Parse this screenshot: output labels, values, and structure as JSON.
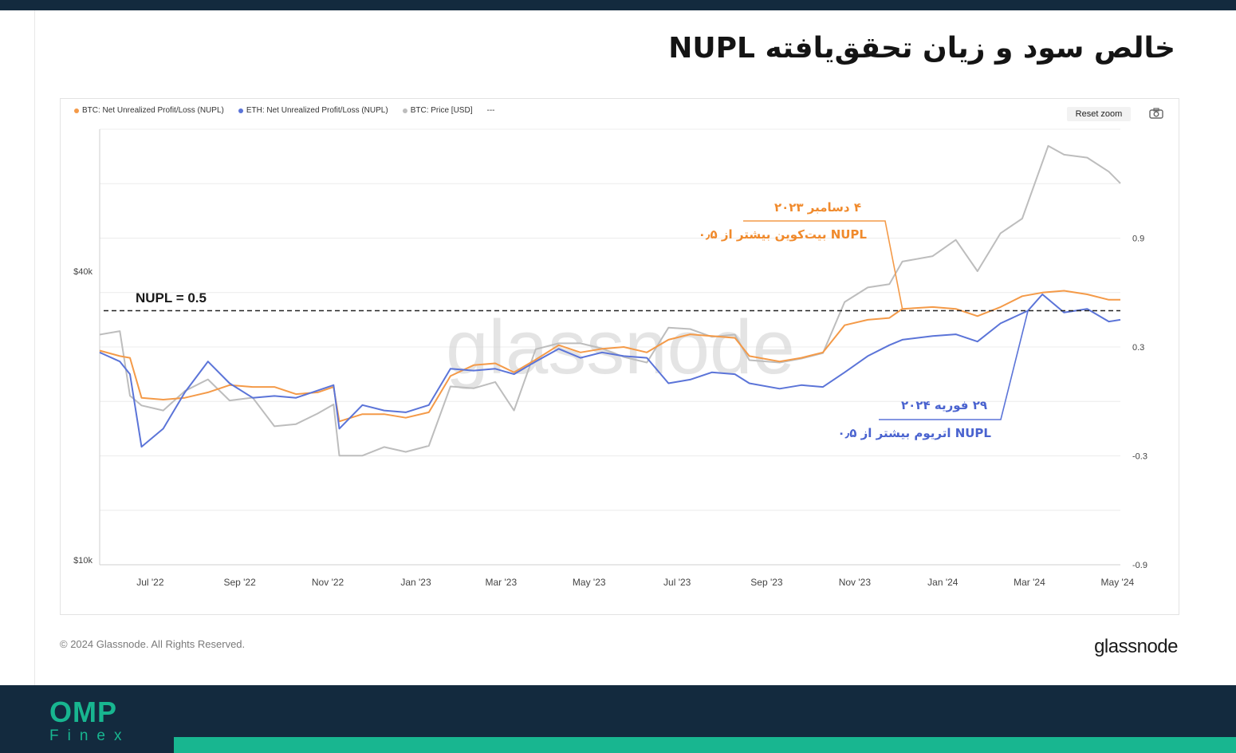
{
  "title": "خالص سود و زیان تحقق‌یافته NUPL",
  "legend": [
    {
      "label": "BTC: Net Unrealized Profit/Loss (NUPL)",
      "color": "#f49a48"
    },
    {
      "label": "ETH: Net Unrealized Profit/Loss (NUPL)",
      "color": "#5b74d8"
    },
    {
      "label": "BTC: Price [USD]",
      "color": "#bdbdbd"
    },
    {
      "label": "---",
      "color": "#888888"
    }
  ],
  "toolbar": {
    "reset_zoom": "Reset zoom",
    "icon": "camera-icon"
  },
  "annotations": {
    "nupl_line": "NUPL = 0.5",
    "btc_date": "۴ دسامبر ۲۰۲۳",
    "btc_text": "NUPL بیت‌کوین بیشتر از ۰٫۵",
    "eth_date": "۲۹ فوریه ۲۰۲۴",
    "eth_text": "NUPL اتریوم بیشتر از ۰٫۵"
  },
  "footer": {
    "copyright": "© 2024 Glassnode. All Rights Reserved.",
    "brand": "glassnode",
    "logo_main": "OMP",
    "logo_sub": "Finex",
    "watermark": "glassnode"
  },
  "colors": {
    "btc": "#f49a48",
    "eth": "#5b74d8",
    "price": "#bdbdbd",
    "dark": "#132a3e",
    "accent": "#18b690"
  },
  "chart_data": {
    "type": "line",
    "x_labels": [
      "Jul '22",
      "Sep '22",
      "Nov '22",
      "Jan '23",
      "Mar '23",
      "May '23",
      "Jul '23",
      "Sep '23",
      "Nov '23",
      "Jan '24",
      "Mar '24",
      "May '24"
    ],
    "x_range": [
      "2022-05-27",
      "2024-05-03"
    ],
    "y_left": {
      "ticks": [
        "$40k",
        "$10k"
      ],
      "tick_values": [
        40000,
        10000
      ],
      "scale": "log"
    },
    "y_right": {
      "ticks": [
        "0.9",
        "0.3",
        "-0.3",
        "-0.9"
      ],
      "tick_values": [
        0.9,
        0.3,
        -0.3,
        -0.9
      ],
      "range": [
        -0.9,
        1.5
      ]
    },
    "reference_line": {
      "label": "NUPL = 0.5",
      "value": 0.5,
      "style": "dashed"
    },
    "series": [
      {
        "name": "BTC: Net Unrealized Profit/Loss (NUPL)",
        "axis": "right",
        "dates": [
          "2022-05-27",
          "2022-06-10",
          "2022-06-17",
          "2022-06-25",
          "2022-07-10",
          "2022-07-25",
          "2022-08-10",
          "2022-08-25",
          "2022-09-10",
          "2022-09-25",
          "2022-10-10",
          "2022-10-25",
          "2022-11-05",
          "2022-11-09",
          "2022-11-25",
          "2022-12-10",
          "2022-12-25",
          "2023-01-10",
          "2023-01-25",
          "2023-02-10",
          "2023-02-25",
          "2023-03-10",
          "2023-03-25",
          "2023-04-10",
          "2023-04-25",
          "2023-05-10",
          "2023-05-25",
          "2023-06-10",
          "2023-06-25",
          "2023-07-10",
          "2023-07-25",
          "2023-08-10",
          "2023-08-20",
          "2023-09-10",
          "2023-09-25",
          "2023-10-10",
          "2023-10-25",
          "2023-11-10",
          "2023-11-25",
          "2023-12-04",
          "2023-12-25",
          "2024-01-10",
          "2024-01-25",
          "2024-02-10",
          "2024-02-25",
          "2024-03-10",
          "2024-03-25",
          "2024-04-10",
          "2024-04-25",
          "2024-05-03"
        ],
        "values": [
          0.28,
          0.25,
          0.24,
          0.02,
          0.01,
          0.02,
          0.05,
          0.09,
          0.08,
          0.08,
          0.04,
          0.05,
          0.08,
          -0.11,
          -0.07,
          -0.07,
          -0.09,
          -0.06,
          0.14,
          0.2,
          0.21,
          0.16,
          0.23,
          0.31,
          0.27,
          0.29,
          0.3,
          0.27,
          0.34,
          0.37,
          0.36,
          0.35,
          0.25,
          0.22,
          0.24,
          0.27,
          0.42,
          0.45,
          0.46,
          0.51,
          0.52,
          0.51,
          0.47,
          0.52,
          0.58,
          0.6,
          0.61,
          0.59,
          0.56,
          0.56
        ]
      },
      {
        "name": "ETH: Net Unrealized Profit/Loss (NUPL)",
        "axis": "right",
        "dates": [
          "2022-05-27",
          "2022-06-10",
          "2022-06-17",
          "2022-06-25",
          "2022-07-10",
          "2022-07-25",
          "2022-08-10",
          "2022-08-25",
          "2022-09-10",
          "2022-09-25",
          "2022-10-10",
          "2022-10-25",
          "2022-11-05",
          "2022-11-09",
          "2022-11-25",
          "2022-12-10",
          "2022-12-25",
          "2023-01-10",
          "2023-01-25",
          "2023-02-10",
          "2023-02-25",
          "2023-03-10",
          "2023-03-25",
          "2023-04-10",
          "2023-04-25",
          "2023-05-10",
          "2023-05-25",
          "2023-06-10",
          "2023-06-25",
          "2023-07-10",
          "2023-07-25",
          "2023-08-10",
          "2023-08-20",
          "2023-09-10",
          "2023-09-25",
          "2023-10-10",
          "2023-10-25",
          "2023-11-10",
          "2023-11-25",
          "2023-12-04",
          "2023-12-25",
          "2024-01-10",
          "2024-01-25",
          "2024-02-10",
          "2024-02-29",
          "2024-03-10",
          "2024-03-25",
          "2024-04-10",
          "2024-04-25",
          "2024-05-03"
        ],
        "values": [
          0.27,
          0.22,
          0.15,
          -0.25,
          -0.15,
          0.05,
          0.22,
          0.1,
          0.02,
          0.03,
          0.02,
          0.06,
          0.09,
          -0.15,
          -0.02,
          -0.05,
          -0.06,
          -0.02,
          0.18,
          0.17,
          0.18,
          0.15,
          0.22,
          0.29,
          0.24,
          0.27,
          0.25,
          0.24,
          0.1,
          0.12,
          0.16,
          0.15,
          0.1,
          0.07,
          0.09,
          0.08,
          0.16,
          0.25,
          0.31,
          0.34,
          0.36,
          0.37,
          0.33,
          0.43,
          0.5,
          0.59,
          0.49,
          0.51,
          0.44,
          0.45
        ]
      },
      {
        "name": "BTC: Price [USD]",
        "axis": "left",
        "dates": [
          "2022-05-27",
          "2022-06-10",
          "2022-06-17",
          "2022-06-25",
          "2022-07-10",
          "2022-07-25",
          "2022-08-10",
          "2022-08-25",
          "2022-09-10",
          "2022-09-25",
          "2022-10-10",
          "2022-10-25",
          "2022-11-05",
          "2022-11-09",
          "2022-11-25",
          "2022-12-10",
          "2022-12-25",
          "2023-01-10",
          "2023-01-25",
          "2023-02-10",
          "2023-02-25",
          "2023-03-10",
          "2023-03-25",
          "2023-04-10",
          "2023-04-25",
          "2023-05-10",
          "2023-05-25",
          "2023-06-10",
          "2023-06-25",
          "2023-07-10",
          "2023-07-25",
          "2023-08-10",
          "2023-08-20",
          "2023-09-10",
          "2023-09-25",
          "2023-10-10",
          "2023-10-25",
          "2023-11-10",
          "2023-11-25",
          "2023-12-04",
          "2023-12-25",
          "2024-01-10",
          "2024-01-25",
          "2024-02-10",
          "2024-02-25",
          "2024-03-14",
          "2024-03-25",
          "2024-04-10",
          "2024-04-25",
          "2024-05-03"
        ],
        "values": [
          29500,
          30000,
          22000,
          21000,
          20500,
          22500,
          23800,
          21500,
          21800,
          19000,
          19200,
          20200,
          21100,
          16500,
          16500,
          17200,
          16800,
          17300,
          23000,
          22800,
          23500,
          20500,
          27500,
          28300,
          28300,
          27600,
          26500,
          25800,
          30500,
          30300,
          29200,
          29500,
          26100,
          25800,
          26300,
          27000,
          34500,
          37000,
          37600,
          41900,
          43000,
          46500,
          40000,
          48000,
          51500,
          73000,
          70000,
          69000,
          64500,
          61000
        ]
      }
    ]
  }
}
